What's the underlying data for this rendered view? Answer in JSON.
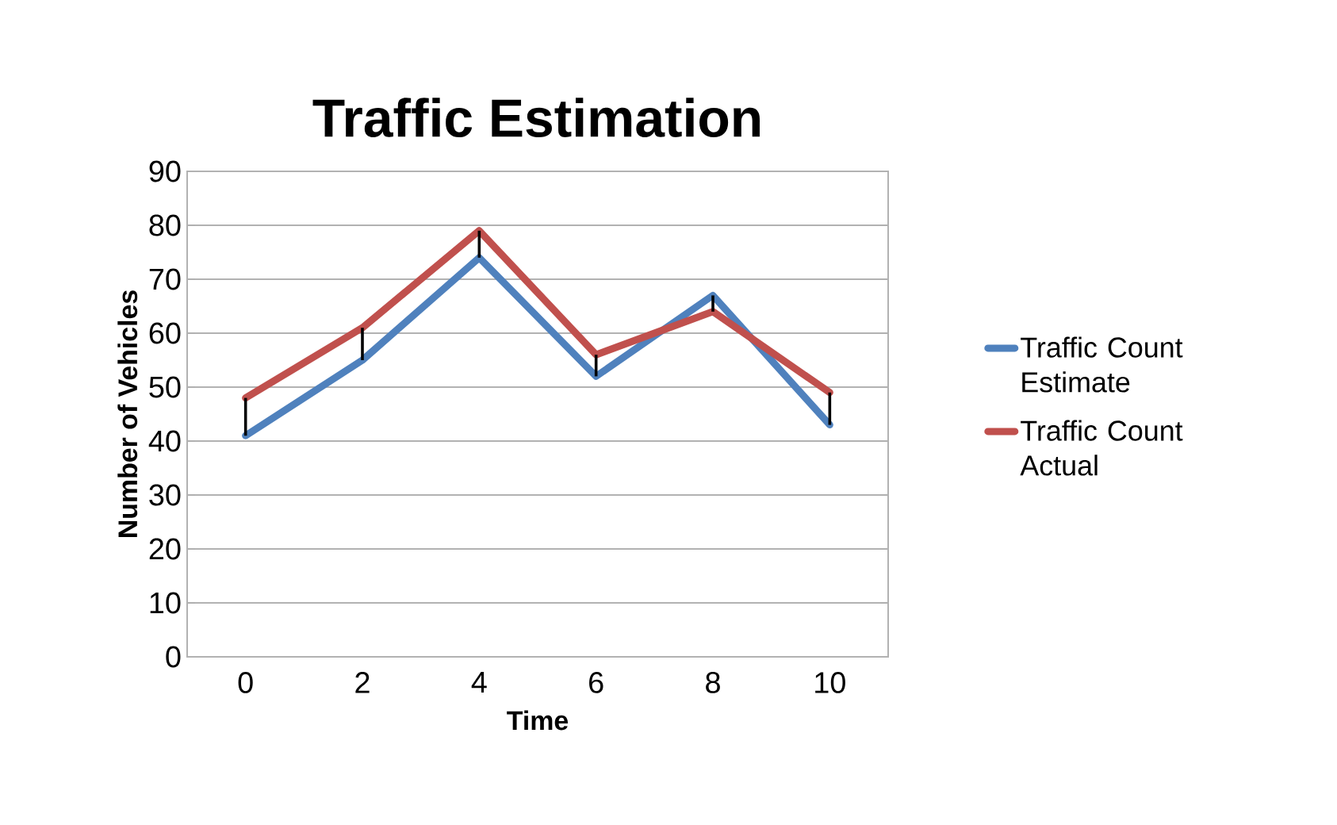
{
  "chart_data": {
    "type": "line",
    "title": "Traffic Estimation",
    "xlabel": "Time",
    "ylabel": "Number of Vehicles",
    "categories": [
      "0",
      "2",
      "4",
      "6",
      "8",
      "10"
    ],
    "series": [
      {
        "name": "Traffic Count Estimate",
        "color": "#4f81bd",
        "values": [
          41,
          55,
          74,
          52,
          67,
          43
        ]
      },
      {
        "name": "Traffic Count Actual",
        "color": "#c0504d",
        "values": [
          48,
          61,
          79,
          56,
          64,
          49
        ],
        "errors": [
          [
            41,
            48
          ],
          [
            55,
            61
          ],
          [
            74,
            79
          ],
          [
            52,
            56
          ],
          [
            64,
            67
          ],
          [
            43,
            49
          ]
        ]
      }
    ],
    "ylim": [
      0,
      90
    ],
    "yticks": [
      0,
      10,
      20,
      30,
      40,
      50,
      60,
      70,
      80,
      90
    ],
    "grid": "y",
    "legend": "right",
    "line_style": "solid",
    "marker": "none"
  }
}
